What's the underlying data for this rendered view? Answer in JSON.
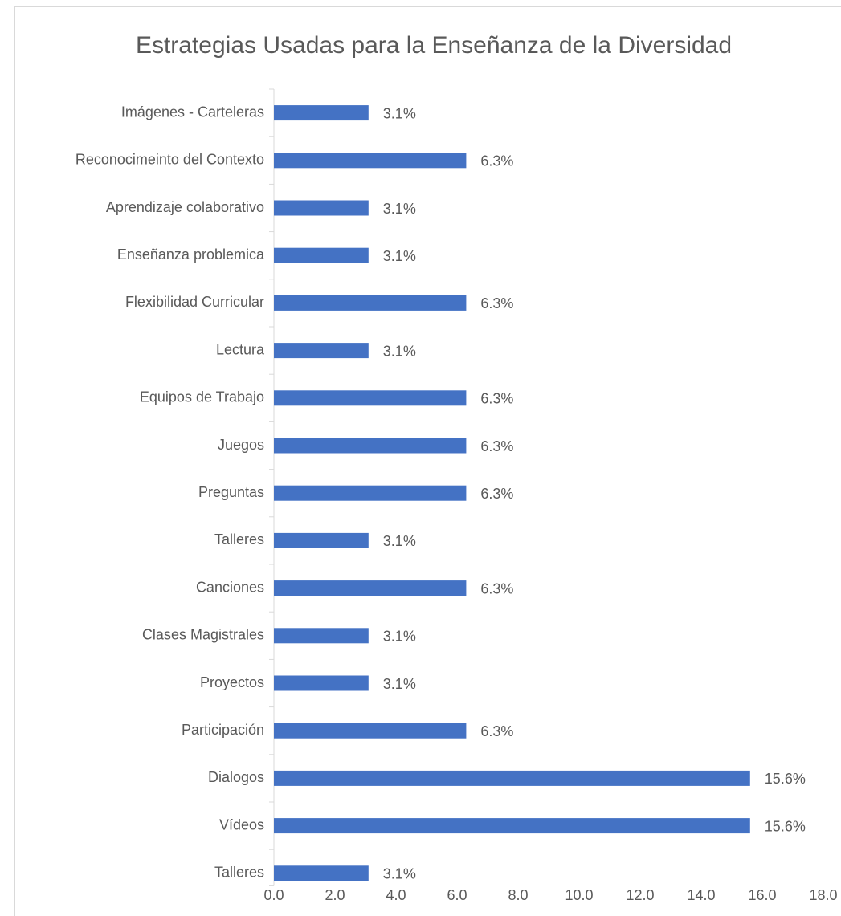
{
  "chart_data": {
    "type": "barh",
    "title": "Estrategias Usadas para la Enseñanza de la Diversidad",
    "categories": [
      "Imágenes - Carteleras",
      "Reconocimeinto del Contexto",
      "Aprendizaje colaborativo",
      "Enseñanza problemica",
      "Flexibilidad Curricular",
      "Lectura",
      "Equipos de Trabajo",
      "Juegos",
      "Preguntas",
      "Talleres",
      "Canciones",
      "Clases Magistrales",
      "Proyectos",
      "Participación",
      "Dialogos",
      "Vídeos",
      "Talleres"
    ],
    "values": [
      3.1,
      6.3,
      3.1,
      3.1,
      6.3,
      3.1,
      6.3,
      6.3,
      6.3,
      3.1,
      6.3,
      3.1,
      3.1,
      6.3,
      15.6,
      15.6,
      3.1
    ],
    "value_labels": [
      "3.1%",
      "6.3%",
      "3.1%",
      "3.1%",
      "6.3%",
      "3.1%",
      "6.3%",
      "6.3%",
      "6.3%",
      "3.1%",
      "6.3%",
      "3.1%",
      "3.1%",
      "6.3%",
      "15.6%",
      "15.6%",
      "3.1%"
    ],
    "color": "#4472c4",
    "xlim": [
      0,
      18
    ],
    "xticks": [
      {
        "value": 0,
        "label": "0.0"
      },
      {
        "value": 2,
        "label": "2.0"
      },
      {
        "value": 4,
        "label": "4.0"
      },
      {
        "value": 6,
        "label": "6.0"
      },
      {
        "value": 8,
        "label": "8.0"
      },
      {
        "value": 10,
        "label": "10.0"
      },
      {
        "value": 12,
        "label": "12.0"
      },
      {
        "value": 14,
        "label": "14.0"
      },
      {
        "value": 16,
        "label": "16.0"
      },
      {
        "value": 18,
        "label": "18.0"
      }
    ],
    "grid": false
  }
}
